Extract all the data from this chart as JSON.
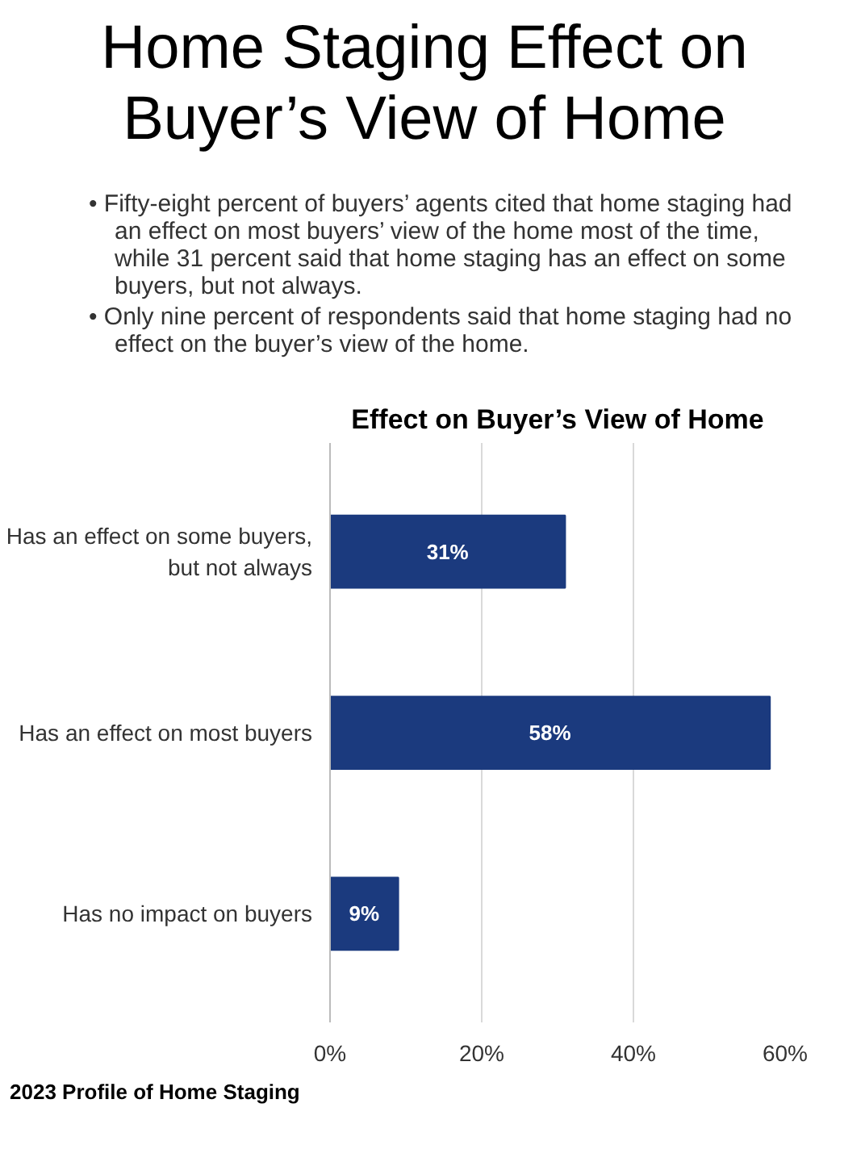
{
  "chart_data": {
    "type": "bar",
    "orientation": "horizontal",
    "title": "Home Staging Effect on Buyer’s View of Home",
    "subtitle": "Effect on Buyer’s View of Home",
    "categories": [
      "Has an effect on some buyers, but not always",
      "Has an effect on most buyers",
      "Has no impact on buyers"
    ],
    "values": [
      31,
      58,
      9
    ],
    "value_labels": [
      "31%",
      "58%",
      "9%"
    ],
    "color": "#1b3a7e",
    "xlim": [
      0,
      60
    ],
    "xticks": [
      {
        "value": 0,
        "label": "0%"
      },
      {
        "value": 20,
        "label": "20%"
      },
      {
        "value": 40,
        "label": "40%"
      },
      {
        "value": 60,
        "label": "60%"
      }
    ],
    "grid": "x",
    "annotations": [
      "• Fifty-eight percent of buyers’ agents cited that home staging had an effect on most buyers’ view of the home most of the time, while 31 percent said that home staging has an effect on some buyers, but not always.",
      "• Only nine percent of respondents said that home staging had no effect on the buyer’s view of the home.",
      "2023 Profile of Home Staging"
    ]
  }
}
